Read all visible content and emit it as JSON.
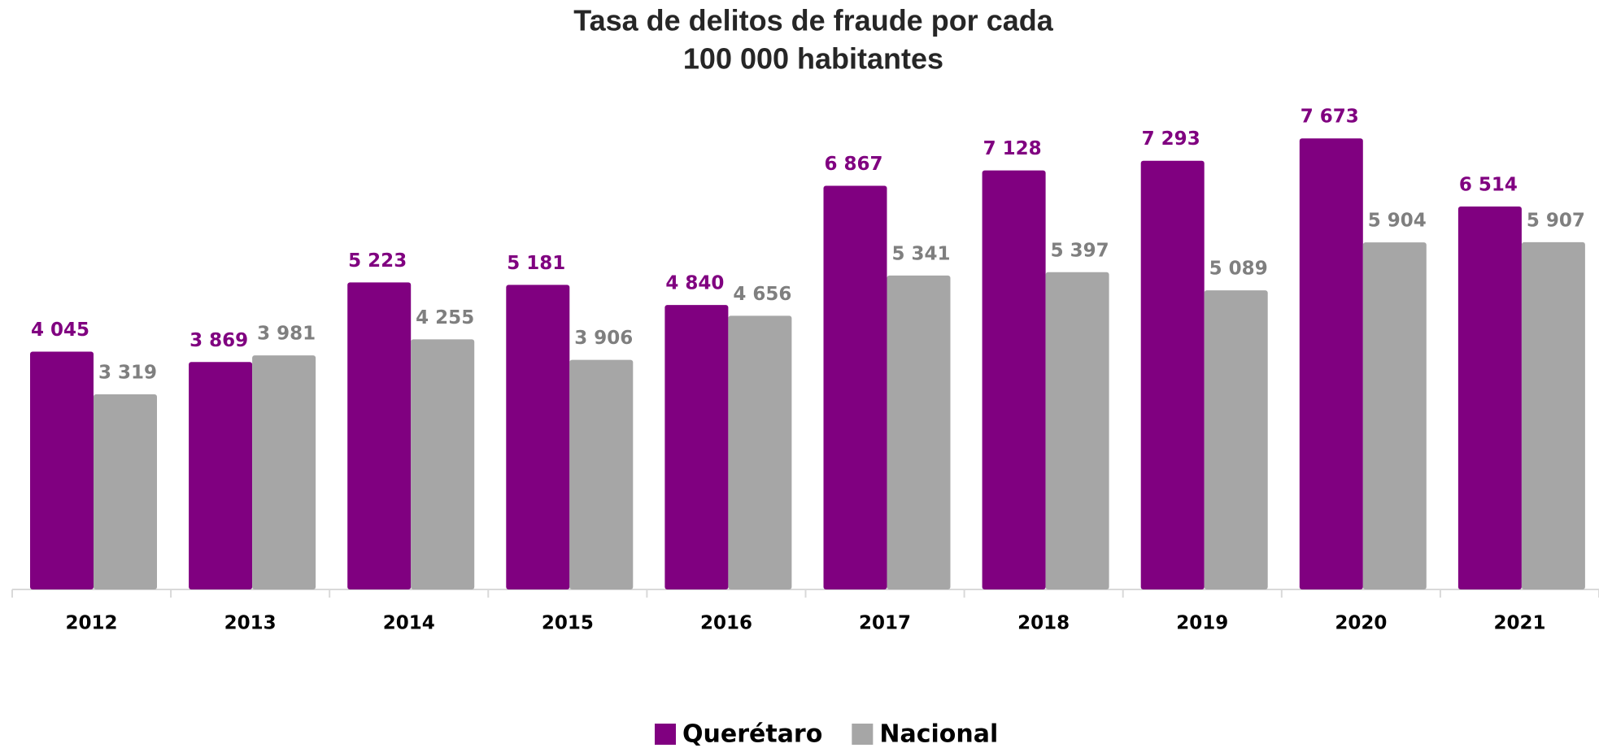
{
  "chart_data": {
    "type": "bar",
    "title": [
      "Tasa de delitos de fraude por cada",
      "100 000 habitantes"
    ],
    "categories": [
      "2012",
      "2013",
      "2014",
      "2015",
      "2016",
      "2017",
      "2018",
      "2019",
      "2020",
      "2021"
    ],
    "series": [
      {
        "name": "Querétaro",
        "color": "#800080",
        "values": [
          4045,
          3869,
          5223,
          5181,
          4840,
          6867,
          7128,
          7293,
          7673,
          6514
        ],
        "value_labels": [
          "4 045",
          "3 869",
          "5 223",
          "5 181",
          "4 840",
          "6 867",
          "7 128",
          "7 293",
          "7 673",
          "6 514"
        ]
      },
      {
        "name": "Nacional",
        "color": "#a6a6a6",
        "values": [
          3319,
          3981,
          4255,
          3906,
          4656,
          5341,
          5397,
          5089,
          5904,
          5907
        ],
        "value_labels": [
          "3 319",
          "3 981",
          "4 255",
          "3 906",
          "4 656",
          "5 341",
          "5 397",
          "5 089",
          "5 904",
          "5 907"
        ]
      }
    ],
    "ylim": [
      0,
      10000
    ],
    "legend": "bottom"
  }
}
